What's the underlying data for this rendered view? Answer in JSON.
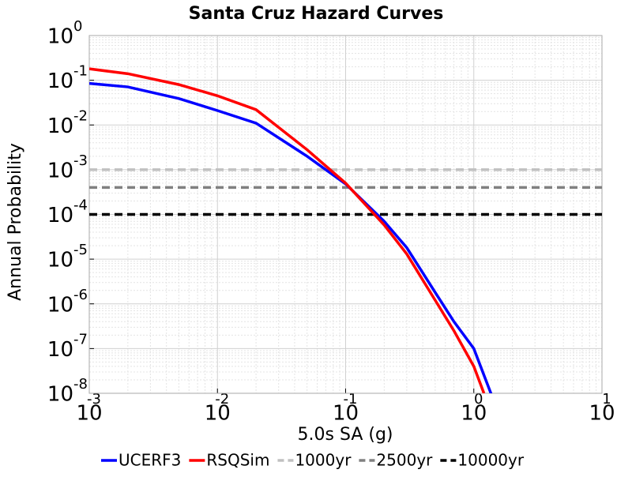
{
  "chart_data": {
    "type": "line",
    "title": "Santa Cruz Hazard Curves",
    "xlabel": "5.0s SA (g)",
    "ylabel": "Annual Probability",
    "xscale": "log",
    "yscale": "log",
    "grid": true,
    "legend": "bottom",
    "xlim": [
      0.001,
      10
    ],
    "ylim": [
      1e-08,
      1
    ],
    "xticks": [
      {
        "value": 0.001,
        "label": "10",
        "exponent": "-3"
      },
      {
        "value": 0.01,
        "label": "10",
        "exponent": "-2"
      },
      {
        "value": 0.1,
        "label": "10",
        "exponent": "-1"
      },
      {
        "value": 1,
        "label": "10",
        "exponent": "0"
      },
      {
        "value": 10,
        "label": "10",
        "exponent": "1"
      }
    ],
    "yticks": [
      {
        "value": 1,
        "label": "10",
        "exponent": "0"
      },
      {
        "value": 0.1,
        "label": "10",
        "exponent": "-1"
      },
      {
        "value": 0.01,
        "label": "10",
        "exponent": "-2"
      },
      {
        "value": 0.001,
        "label": "10",
        "exponent": "-3"
      },
      {
        "value": 0.0001,
        "label": "10",
        "exponent": "-4"
      },
      {
        "value": 1e-05,
        "label": "10",
        "exponent": "-5"
      },
      {
        "value": 1e-06,
        "label": "10",
        "exponent": "-6"
      },
      {
        "value": 1e-07,
        "label": "10",
        "exponent": "-7"
      },
      {
        "value": 1e-08,
        "label": "10",
        "exponent": "-8"
      }
    ],
    "series": [
      {
        "name": "UCERF3",
        "color": "#0000ff",
        "dash": false,
        "x": [
          0.001,
          0.002,
          0.005,
          0.01,
          0.02,
          0.05,
          0.1,
          0.2,
          0.3,
          0.5,
          0.7,
          1,
          1.4
        ],
        "values": [
          0.085,
          0.071,
          0.039,
          0.021,
          0.011,
          0.002,
          0.00048,
          7e-05,
          1.8e-05,
          1.8e-06,
          4e-07,
          1e-07,
          8e-09
        ]
      },
      {
        "name": "RSQSim",
        "color": "#ff0000",
        "dash": false,
        "x": [
          0.001,
          0.002,
          0.005,
          0.01,
          0.02,
          0.05,
          0.1,
          0.2,
          0.3,
          0.5,
          0.7,
          1,
          1.2
        ],
        "values": [
          0.18,
          0.14,
          0.08,
          0.045,
          0.022,
          0.0028,
          0.0005,
          5.8e-05,
          1.3e-05,
          1.2e-06,
          2.5e-07,
          4e-08,
          1e-08
        ]
      },
      {
        "name": "1000yr",
        "color": "#c0c0c0",
        "dash": true,
        "x": [
          0.001,
          10
        ],
        "values": [
          0.001,
          0.001
        ]
      },
      {
        "name": "2500yr",
        "color": "#808080",
        "dash": true,
        "x": [
          0.001,
          10
        ],
        "values": [
          0.0004,
          0.0004
        ]
      },
      {
        "name": "10000yr",
        "color": "#000000",
        "dash": true,
        "x": [
          0.001,
          10
        ],
        "values": [
          0.0001,
          0.0001
        ]
      }
    ]
  }
}
